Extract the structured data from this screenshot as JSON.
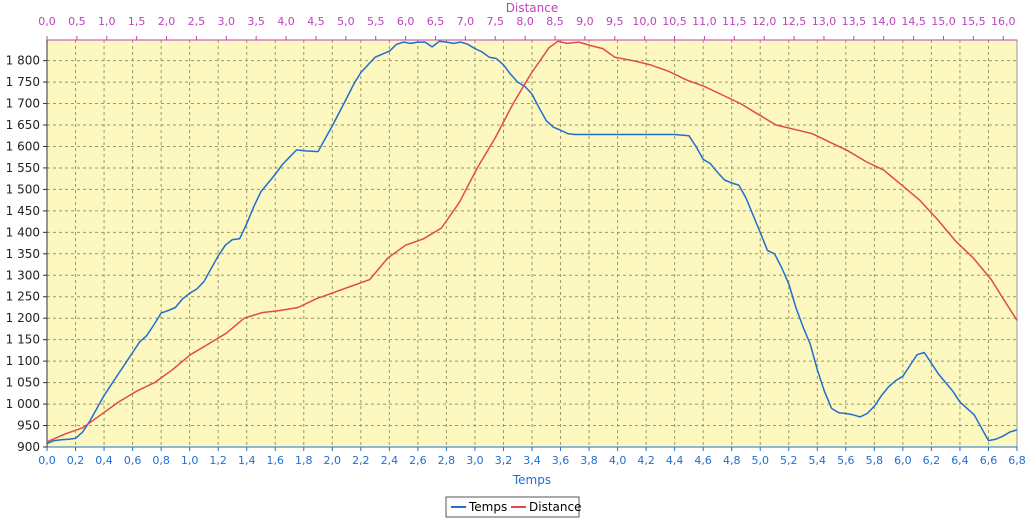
{
  "chart_data": {
    "type": "line",
    "xlabel": "Temps",
    "x2label": "Distance",
    "x_ticks": [
      "0,0",
      "0,2",
      "0,4",
      "0,6",
      "0,8",
      "1,0",
      "1,2",
      "1,4",
      "1,6",
      "1,8",
      "2,0",
      "2,2",
      "2,4",
      "2,6",
      "2,8",
      "3,0",
      "3,2",
      "3,4",
      "3,6",
      "3,8",
      "4,0",
      "4,2",
      "4,4",
      "4,6",
      "4,8",
      "5,0",
      "5,2",
      "5,4",
      "5,6",
      "5,8",
      "6,0",
      "6,2",
      "6,4",
      "6,6",
      "6,8"
    ],
    "x2_ticks": [
      "0,0",
      "0,5",
      "1,0",
      "1,5",
      "2,0",
      "2,5",
      "3,0",
      "3,5",
      "4,0",
      "4,5",
      "5,0",
      "5,5",
      "6,0",
      "6,5",
      "7,0",
      "7,5",
      "8,0",
      "8,5",
      "9,0",
      "9,5",
      "10,0",
      "10,5",
      "11,0",
      "11,5",
      "12,0",
      "12,5",
      "13,0",
      "13,5",
      "14,0",
      "14,5",
      "15,0",
      "15,5",
      "16,0"
    ],
    "y_ticks": [
      "900",
      "950",
      "1 000",
      "1 050",
      "1 100",
      "1 150",
      "1 200",
      "1 250",
      "1 300",
      "1 350",
      "1 400",
      "1 450",
      "1 500",
      "1 550",
      "1 600",
      "1 650",
      "1 700",
      "1 750",
      "1 800"
    ],
    "xlim": [
      0,
      6.8
    ],
    "x2lim": [
      0,
      16.23
    ],
    "ylim": [
      900,
      1848
    ],
    "grid": true,
    "legend_position": "bottom-center",
    "plot_background": "#fcf8c0",
    "series": [
      {
        "name": "Temps",
        "color": "#1f6fd1",
        "axis": "x",
        "points": [
          [
            0.0,
            908
          ],
          [
            0.05,
            915
          ],
          [
            0.1,
            917
          ],
          [
            0.15,
            918
          ],
          [
            0.2,
            920
          ],
          [
            0.25,
            935
          ],
          [
            0.3,
            960
          ],
          [
            0.35,
            990
          ],
          [
            0.4,
            1020
          ],
          [
            0.45,
            1045
          ],
          [
            0.5,
            1070
          ],
          [
            0.55,
            1095
          ],
          [
            0.6,
            1120
          ],
          [
            0.65,
            1145
          ],
          [
            0.7,
            1160
          ],
          [
            0.75,
            1185
          ],
          [
            0.8,
            1212
          ],
          [
            0.85,
            1218
          ],
          [
            0.9,
            1225
          ],
          [
            0.95,
            1245
          ],
          [
            1.0,
            1258
          ],
          [
            1.05,
            1268
          ],
          [
            1.1,
            1285
          ],
          [
            1.15,
            1315
          ],
          [
            1.2,
            1345
          ],
          [
            1.25,
            1370
          ],
          [
            1.3,
            1383
          ],
          [
            1.35,
            1385
          ],
          [
            1.4,
            1420
          ],
          [
            1.45,
            1460
          ],
          [
            1.5,
            1495
          ],
          [
            1.55,
            1515
          ],
          [
            1.6,
            1535
          ],
          [
            1.65,
            1558
          ],
          [
            1.7,
            1575
          ],
          [
            1.75,
            1592
          ],
          [
            1.8,
            1590
          ],
          [
            1.9,
            1588
          ],
          [
            2.0,
            1648
          ],
          [
            2.05,
            1680
          ],
          [
            2.1,
            1712
          ],
          [
            2.15,
            1745
          ],
          [
            2.2,
            1772
          ],
          [
            2.25,
            1790
          ],
          [
            2.3,
            1808
          ],
          [
            2.35,
            1815
          ],
          [
            2.4,
            1822
          ],
          [
            2.45,
            1838
          ],
          [
            2.5,
            1843
          ],
          [
            2.55,
            1840
          ],
          [
            2.6,
            1843
          ],
          [
            2.65,
            1843
          ],
          [
            2.7,
            1832
          ],
          [
            2.75,
            1845
          ],
          [
            2.8,
            1843
          ],
          [
            2.85,
            1840
          ],
          [
            2.9,
            1843
          ],
          [
            2.95,
            1838
          ],
          [
            3.0,
            1828
          ],
          [
            3.05,
            1820
          ],
          [
            3.1,
            1808
          ],
          [
            3.15,
            1805
          ],
          [
            3.2,
            1790
          ],
          [
            3.25,
            1768
          ],
          [
            3.3,
            1750
          ],
          [
            3.35,
            1740
          ],
          [
            3.4,
            1722
          ],
          [
            3.45,
            1690
          ],
          [
            3.5,
            1660
          ],
          [
            3.55,
            1645
          ],
          [
            3.6,
            1638
          ],
          [
            3.65,
            1630
          ],
          [
            3.7,
            1628
          ],
          [
            3.8,
            1628
          ],
          [
            4.0,
            1628
          ],
          [
            4.2,
            1628
          ],
          [
            4.4,
            1628
          ],
          [
            4.5,
            1625
          ],
          [
            4.55,
            1600
          ],
          [
            4.6,
            1570
          ],
          [
            4.65,
            1560
          ],
          [
            4.7,
            1540
          ],
          [
            4.75,
            1522
          ],
          [
            4.8,
            1515
          ],
          [
            4.85,
            1510
          ],
          [
            4.9,
            1480
          ],
          [
            4.95,
            1440
          ],
          [
            5.0,
            1400
          ],
          [
            5.05,
            1358
          ],
          [
            5.1,
            1350
          ],
          [
            5.15,
            1318
          ],
          [
            5.2,
            1280
          ],
          [
            5.25,
            1225
          ],
          [
            5.3,
            1180
          ],
          [
            5.35,
            1140
          ],
          [
            5.4,
            1080
          ],
          [
            5.45,
            1030
          ],
          [
            5.5,
            990
          ],
          [
            5.55,
            980
          ],
          [
            5.6,
            978
          ],
          [
            5.65,
            975
          ],
          [
            5.7,
            970
          ],
          [
            5.75,
            978
          ],
          [
            5.8,
            995
          ],
          [
            5.85,
            1020
          ],
          [
            5.9,
            1040
          ],
          [
            5.95,
            1055
          ],
          [
            6.0,
            1065
          ],
          [
            6.05,
            1090
          ],
          [
            6.1,
            1115
          ],
          [
            6.15,
            1120
          ],
          [
            6.2,
            1095
          ],
          [
            6.25,
            1070
          ],
          [
            6.3,
            1050
          ],
          [
            6.35,
            1030
          ],
          [
            6.4,
            1005
          ],
          [
            6.45,
            990
          ],
          [
            6.5,
            975
          ],
          [
            6.55,
            945
          ],
          [
            6.6,
            915
          ],
          [
            6.65,
            918
          ],
          [
            6.7,
            925
          ],
          [
            6.75,
            935
          ],
          [
            6.8,
            940
          ]
        ]
      },
      {
        "name": "Distance",
        "color": "#e04a4a",
        "axis": "x2",
        "points": [
          [
            0.0,
            912
          ],
          [
            0.3,
            930
          ],
          [
            0.6,
            945
          ],
          [
            0.9,
            975
          ],
          [
            1.2,
            1005
          ],
          [
            1.5,
            1030
          ],
          [
            1.8,
            1050
          ],
          [
            2.1,
            1080
          ],
          [
            2.4,
            1115
          ],
          [
            2.7,
            1140
          ],
          [
            3.0,
            1165
          ],
          [
            3.3,
            1200
          ],
          [
            3.6,
            1213
          ],
          [
            3.9,
            1218
          ],
          [
            4.2,
            1225
          ],
          [
            4.5,
            1245
          ],
          [
            4.8,
            1260
          ],
          [
            5.1,
            1275
          ],
          [
            5.4,
            1290
          ],
          [
            5.7,
            1340
          ],
          [
            6.0,
            1370
          ],
          [
            6.3,
            1385
          ],
          [
            6.6,
            1410
          ],
          [
            6.9,
            1470
          ],
          [
            7.2,
            1550
          ],
          [
            7.5,
            1620
          ],
          [
            7.8,
            1700
          ],
          [
            8.1,
            1770
          ],
          [
            8.4,
            1830
          ],
          [
            8.55,
            1845
          ],
          [
            8.7,
            1840
          ],
          [
            8.9,
            1843
          ],
          [
            9.1,
            1835
          ],
          [
            9.3,
            1828
          ],
          [
            9.5,
            1808
          ],
          [
            9.8,
            1800
          ],
          [
            10.1,
            1790
          ],
          [
            10.4,
            1775
          ],
          [
            10.7,
            1755
          ],
          [
            11.0,
            1740
          ],
          [
            11.3,
            1720
          ],
          [
            11.6,
            1700
          ],
          [
            11.9,
            1675
          ],
          [
            12.2,
            1650
          ],
          [
            12.5,
            1640
          ],
          [
            12.8,
            1630
          ],
          [
            13.1,
            1610
          ],
          [
            13.4,
            1590
          ],
          [
            13.7,
            1565
          ],
          [
            14.0,
            1545
          ],
          [
            14.3,
            1510
          ],
          [
            14.6,
            1475
          ],
          [
            14.9,
            1430
          ],
          [
            15.2,
            1380
          ],
          [
            15.5,
            1340
          ],
          [
            15.8,
            1290
          ],
          [
            16.0,
            1245
          ],
          [
            16.23,
            1195
          ]
        ]
      }
    ]
  },
  "legend": {
    "items": [
      {
        "label": "Temps",
        "color": "#1f6fd1"
      },
      {
        "label": "Distance",
        "color": "#e04a4a"
      }
    ]
  }
}
